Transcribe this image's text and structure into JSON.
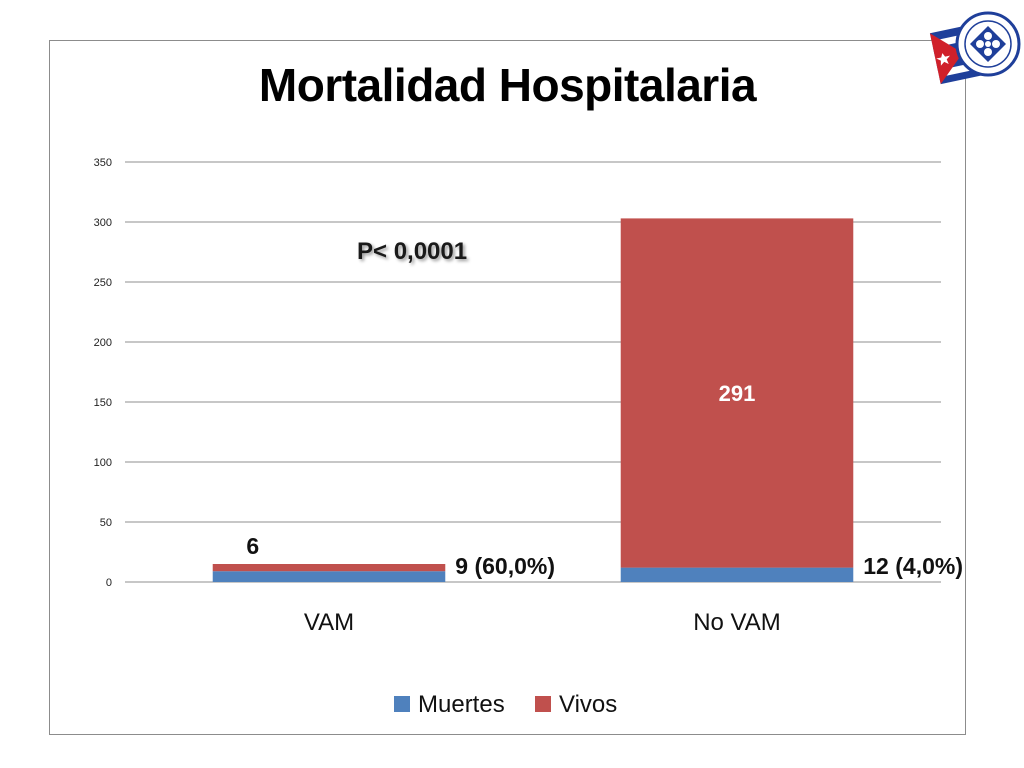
{
  "chart_data": {
    "type": "bar",
    "stacked": true,
    "title": "Mortalidad Hospitalaria",
    "categories": [
      "VAM",
      "No VAM"
    ],
    "series": [
      {
        "name": "Muertes",
        "values": [
          9,
          12
        ],
        "color": "#4f81bd"
      },
      {
        "name": "Vivos",
        "values": [
          6,
          291
        ],
        "color": "#c0504d"
      }
    ],
    "data_labels": [
      {
        "category": "VAM",
        "series": "Vivos",
        "text": "6"
      },
      {
        "category": "VAM",
        "series": "Muertes",
        "text": "9 (60,0%)"
      },
      {
        "category": "No VAM",
        "series": "Vivos",
        "text": "291"
      },
      {
        "category": "No VAM",
        "series": "Muertes",
        "text": "12 (4,0%)"
      }
    ],
    "ylim": [
      0,
      350
    ],
    "yticks": [
      0,
      50,
      100,
      150,
      200,
      250,
      300,
      350
    ],
    "grid": true,
    "legend": "bottom",
    "annotation": "P< 0,0001"
  },
  "logo": {
    "name": "institute-emblem-icon"
  }
}
